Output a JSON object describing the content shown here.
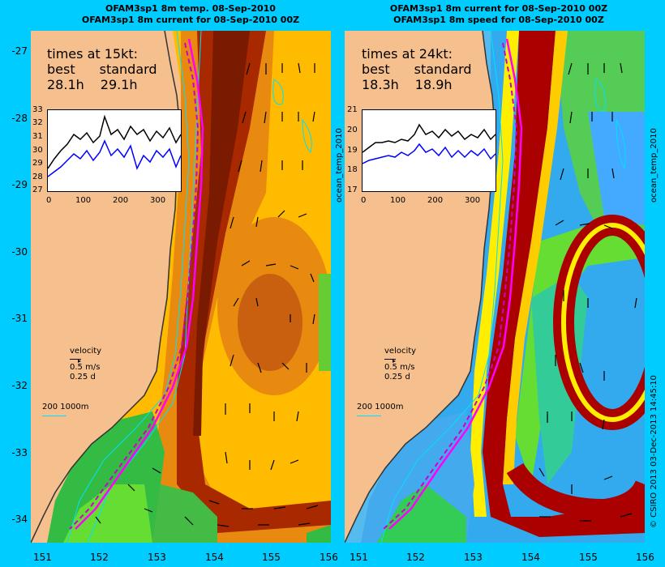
{
  "left_title": [
    "OFAM3sp1 8m temp. 08-Sep-2010",
    "OFAM3sp1 8m current for 08-Sep-2010 00Z"
  ],
  "right_title": [
    "OFAM3sp1 8m current for 08-Sep-2010 00Z",
    "OFAM3sp1 8m speed for 08-Sep-2010 00Z"
  ],
  "y_ticks": [
    "-27",
    "-28",
    "-29",
    "-30",
    "-31",
    "-32",
    "-33",
    "-34"
  ],
  "x_ticks": [
    "151",
    "152",
    "153",
    "154",
    "155",
    "156"
  ],
  "left_times": {
    "heading": "times at 15kt:",
    "best_label": "best",
    "standard_label": "standard",
    "best": "28.1h",
    "standard": "29.1h"
  },
  "right_times": {
    "heading": "times at 24kt:",
    "best_label": "best",
    "standard_label": "standard",
    "best": "18.3h",
    "standard": "18.9h"
  },
  "left_inset": {
    "y_ticks": [
      "33",
      "32",
      "31",
      "30",
      "29",
      "28",
      "27"
    ],
    "x_ticks": [
      "0",
      "100",
      "200",
      "300"
    ]
  },
  "right_inset": {
    "y_ticks": [
      "21",
      "20",
      "19",
      "18",
      "17"
    ],
    "x_ticks": [
      "0",
      "100",
      "200",
      "300"
    ]
  },
  "velocity_legend": {
    "title": "velocity",
    "speed": "0.5 m/s",
    "days": "0.25 d"
  },
  "depth_legend": "200  1000m",
  "side_label": "ocean_temp_2010",
  "copyright": "© CSIRO 2013   03-Dec-2013 14:45:10",
  "colors": {
    "background": "#00ccff",
    "land": "#f5c08e",
    "route_best": "#ff00ff",
    "series_black": "#000000",
    "series_blue": "#0000ff",
    "contour": "#00e0ff"
  }
}
